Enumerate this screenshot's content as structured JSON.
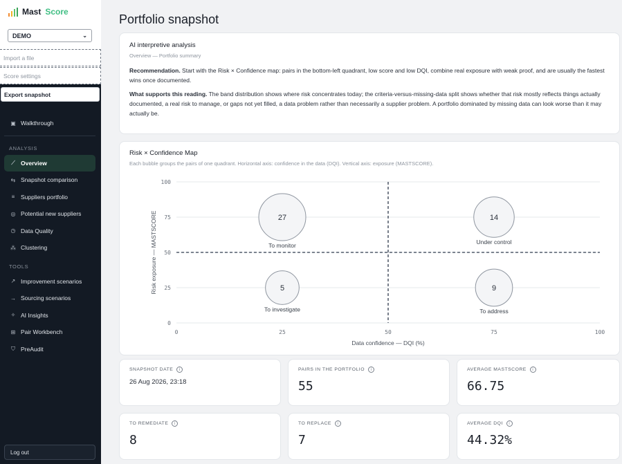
{
  "brand": {
    "part1": "Mast",
    "part2": "Score",
    "colors": {
      "accent": "#3fbe83",
      "bars": [
        "#f28b30",
        "#f0b429",
        "#5cc36a",
        "#3aa35a"
      ]
    }
  },
  "sidebar": {
    "workspace_select": "DEMO",
    "links": [
      "Import a file",
      "Score settings"
    ],
    "export_label": "Export snapshot",
    "walkthrough": "Walkthrough",
    "analysis_heading": "ANALYSIS",
    "analysis_items": [
      {
        "label": "Overview",
        "icon": "chart-line-icon",
        "active": true
      },
      {
        "label": "Snapshot comparison",
        "icon": "compare-arrows-icon"
      },
      {
        "label": "Suppliers portfolio",
        "icon": "list-icon"
      },
      {
        "label": "Potential new suppliers",
        "icon": "target-icon"
      },
      {
        "label": "Data Quality",
        "icon": "clock-icon"
      },
      {
        "label": "Clustering",
        "icon": "cluster-icon"
      }
    ],
    "tools_heading": "TOOLS",
    "tools_items": [
      {
        "label": "Improvement scenarios",
        "icon": "trend-icon"
      },
      {
        "label": "Sourcing scenarios",
        "icon": "arrow-right-icon"
      },
      {
        "label": "AI Insights",
        "icon": "sparkle-icon"
      },
      {
        "label": "Pair Workbench",
        "icon": "workbench-icon"
      },
      {
        "label": "PreAudit",
        "icon": "shield-check-icon"
      }
    ],
    "logout": "Log out"
  },
  "page": {
    "title": "Portfolio snapshot"
  },
  "analysis": {
    "title": "AI interpretive analysis",
    "subtitle": "Overview — Portfolio summary",
    "rec_label": "Recommendation.",
    "rec_text": " Start with the Risk × Confidence map: pairs in the bottom-left quadrant, low score and low DQI, combine real exposure with weak proof, and are usually the fastest wins once documented.",
    "support_label": "What supports this reading.",
    "support_text": " The band distribution shows where risk concentrates today; the criteria-versus-missing-data split shows whether that risk mostly reflects things actually documented, a real risk to manage, or gaps not yet filled, a data problem rather than necessarily a supplier problem. A portfolio dominated by missing data can look worse than it may actually be."
  },
  "map": {
    "title": "Risk × Confidence Map",
    "subtitle": "Each bubble groups the pairs of one quadrant. Horizontal axis: confidence in the data (DQI). Vertical axis: exposure (MASTSCORE)."
  },
  "chart_data": {
    "type": "scatter",
    "title": "Risk × Confidence Map",
    "xlabel": "Data confidence — DQI (%)",
    "ylabel": "Risk exposure — MASTSCORE",
    "xlim": [
      0,
      100
    ],
    "ylim": [
      0,
      100
    ],
    "xticks": [
      0,
      25,
      50,
      75,
      100
    ],
    "yticks": [
      0,
      25,
      50,
      75,
      100
    ],
    "thresholds": {
      "x": 50,
      "y": 50
    },
    "grid": true,
    "points": [
      {
        "label": "To monitor",
        "x": 25,
        "y": 75,
        "count": 27
      },
      {
        "label": "Under control",
        "x": 75,
        "y": 75,
        "count": 14
      },
      {
        "label": "To investigate",
        "x": 25,
        "y": 25,
        "count": 5
      },
      {
        "label": "To address",
        "x": 75,
        "y": 25,
        "count": 9
      }
    ]
  },
  "kpis": [
    {
      "label": "SNAPSHOT DATE",
      "value": "26 Aug 2026, 23:18",
      "style": "small"
    },
    {
      "label": "PAIRS IN THE PORTFOLIO",
      "value": "55"
    },
    {
      "label": "AVERAGE MASTSCORE",
      "value": "66.75"
    },
    {
      "label": "TO REMEDIATE",
      "value": "8"
    },
    {
      "label": "TO REPLACE",
      "value": "7"
    },
    {
      "label": "AVERAGE DQI",
      "value": "44.32%"
    }
  ]
}
